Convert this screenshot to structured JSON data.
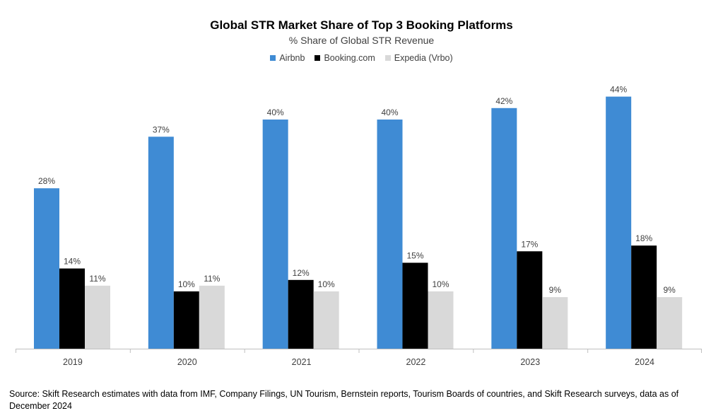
{
  "chart_data": {
    "type": "bar",
    "title": "Global STR Market Share of Top 3 Booking Platforms",
    "subtitle": "% Share of Global STR Revenue",
    "categories": [
      "2019",
      "2020",
      "2021",
      "2022",
      "2023",
      "2024"
    ],
    "series": [
      {
        "name": "Airbnb",
        "color": "#3f8bd4",
        "values": [
          28,
          37,
          40,
          40,
          42,
          44
        ],
        "labels": [
          "28%",
          "37%",
          "40%",
          "40%",
          "42%",
          "44%"
        ]
      },
      {
        "name": "Booking.com",
        "color": "#000000",
        "values": [
          14,
          10,
          12,
          15,
          17,
          18
        ],
        "labels": [
          "14%",
          "10%",
          "12%",
          "15%",
          "17%",
          "18%"
        ]
      },
      {
        "name": "Expedia (Vrbo)",
        "color": "#d9d9d9",
        "values": [
          11,
          11,
          10,
          10,
          9,
          9
        ],
        "labels": [
          "11%",
          "11%",
          "10%",
          "10%",
          "9%",
          "9%"
        ]
      }
    ],
    "ylim": [
      0,
      45
    ],
    "grid": false,
    "legend_position": "top-center"
  },
  "source": "Source: Skift Research estimates with data from IMF, Company Filings, UN Tourism, Bernstein reports, Tourism Boards of countries, and Skift Research surveys, data as of December 2024"
}
